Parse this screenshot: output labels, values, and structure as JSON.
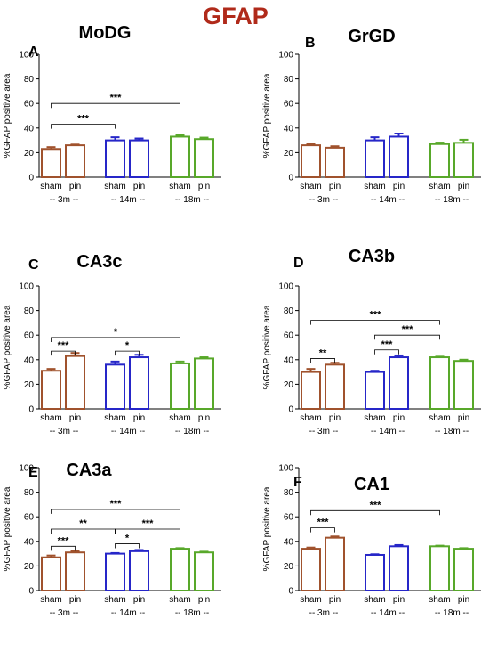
{
  "figure": {
    "title": "GFAP",
    "colors": {
      "title": "#b02a1a",
      "3m": "#a0522d",
      "14m": "#2626c8",
      "18m": "#58a82a"
    }
  },
  "chart_data": [
    {
      "type": "bar",
      "letter": "A",
      "title": "MoDG",
      "ylabel": "%GFAP positive area",
      "ylim": [
        0,
        100
      ],
      "yticks": [
        0,
        20,
        40,
        60,
        80,
        100
      ],
      "categories": [
        "sham",
        "pin",
        "sham",
        "pin",
        "sham",
        "pin"
      ],
      "groups": [
        "-- 3m --",
        "-- 14m --",
        "-- 18m --"
      ],
      "series": [
        {
          "values": [
            23,
            26,
            30,
            30,
            33,
            31
          ],
          "errors": [
            1.5,
            0.6,
            2.5,
            1.5,
            1.2,
            1.2
          ]
        }
      ],
      "significance": [
        {
          "from": 0,
          "to": 2,
          "y": 43,
          "label": "***"
        },
        {
          "from": 0,
          "to": 4,
          "y": 60,
          "label": "***"
        }
      ]
    },
    {
      "type": "bar",
      "letter": "B",
      "title": "GrGD",
      "ylabel": "%GFAP positive area",
      "ylim": [
        0,
        100
      ],
      "yticks": [
        0,
        20,
        40,
        60,
        80,
        100
      ],
      "categories": [
        "sham",
        "pin",
        "sham",
        "pin",
        "sham",
        "pin"
      ],
      "groups": [
        "-- 3m --",
        "-- 14m --",
        "-- 18m --"
      ],
      "series": [
        {
          "values": [
            26,
            24,
            30,
            33,
            27,
            28
          ],
          "errors": [
            1,
            1.2,
            2.5,
            2.5,
            1.2,
            2.5
          ]
        }
      ],
      "significance": []
    },
    {
      "type": "bar",
      "letter": "C",
      "title": "CA3c",
      "ylabel": "%GFAP positive area",
      "ylim": [
        0,
        100
      ],
      "yticks": [
        0,
        20,
        40,
        60,
        80,
        100
      ],
      "categories": [
        "sham",
        "pin",
        "sham",
        "pin",
        "sham",
        "pin"
      ],
      "groups": [
        "-- 3m --",
        "-- 14m --",
        "-- 18m --"
      ],
      "series": [
        {
          "values": [
            31,
            43,
            36,
            42,
            37,
            41
          ],
          "errors": [
            1.5,
            2.5,
            2.5,
            2,
            1.5,
            1
          ]
        }
      ],
      "significance": [
        {
          "from": 0,
          "to": 1,
          "y": 47,
          "label": "***"
        },
        {
          "from": 2,
          "to": 3,
          "y": 47,
          "label": "*"
        },
        {
          "from": 0,
          "to": 4,
          "y": 58,
          "label": "*"
        }
      ]
    },
    {
      "type": "bar",
      "letter": "D",
      "title": "CA3b",
      "ylabel": "%GFAP positive area",
      "ylim": [
        0,
        100
      ],
      "yticks": [
        0,
        20,
        40,
        60,
        80,
        100
      ],
      "categories": [
        "sham",
        "pin",
        "sham",
        "pin",
        "sham",
        "pin"
      ],
      "groups": [
        "-- 3m --",
        "-- 14m --",
        "-- 18m --"
      ],
      "series": [
        {
          "values": [
            30,
            36,
            30,
            42,
            42,
            39
          ],
          "errors": [
            2.5,
            1.5,
            1,
            1.5,
            0.5,
            1
          ]
        }
      ],
      "significance": [
        {
          "from": 0,
          "to": 1,
          "y": 41,
          "label": "**"
        },
        {
          "from": 2,
          "to": 3,
          "y": 48,
          "label": "***"
        },
        {
          "from": 2,
          "to": 4,
          "y": 60,
          "label": "***"
        },
        {
          "from": 0,
          "to": 4,
          "y": 72,
          "label": "***"
        }
      ]
    },
    {
      "type": "bar",
      "letter": "E",
      "title": "CA3a",
      "ylabel": "%GFAP positive area",
      "ylim": [
        0,
        100
      ],
      "yticks": [
        0,
        20,
        40,
        60,
        80,
        100
      ],
      "categories": [
        "sham",
        "pin",
        "sham",
        "pin",
        "sham",
        "pin"
      ],
      "groups": [
        "-- 3m --",
        "-- 14m --",
        "-- 18m --"
      ],
      "series": [
        {
          "values": [
            27,
            31,
            30,
            32,
            34,
            31
          ],
          "errors": [
            1.5,
            1,
            0.5,
            1,
            0.5,
            0.6
          ]
        }
      ],
      "significance": [
        {
          "from": 0,
          "to": 1,
          "y": 36,
          "label": "***"
        },
        {
          "from": 2,
          "to": 3,
          "y": 38,
          "label": "*"
        },
        {
          "from": 0,
          "to": 2,
          "y": 50,
          "label": "**"
        },
        {
          "from": 2,
          "to": 4,
          "y": 50,
          "label": "***"
        },
        {
          "from": 0,
          "to": 4,
          "y": 66,
          "label": "***"
        }
      ]
    },
    {
      "type": "bar",
      "letter": "F",
      "title": "CA1",
      "ylabel": "%GFAP positive area",
      "ylim": [
        0,
        100
      ],
      "yticks": [
        0,
        20,
        40,
        60,
        80,
        100
      ],
      "categories": [
        "sham",
        "pin",
        "sham",
        "pin",
        "sham",
        "pin"
      ],
      "groups": [
        "-- 3m --",
        "-- 14m --",
        "-- 18m --"
      ],
      "series": [
        {
          "values": [
            34,
            43,
            29,
            36,
            36,
            34
          ],
          "errors": [
            1,
            1,
            0.5,
            1,
            0.5,
            0.5
          ]
        }
      ],
      "significance": [
        {
          "from": 0,
          "to": 1,
          "y": 51,
          "label": "***"
        },
        {
          "from": 0,
          "to": 4,
          "y": 65,
          "label": "***"
        }
      ]
    }
  ]
}
